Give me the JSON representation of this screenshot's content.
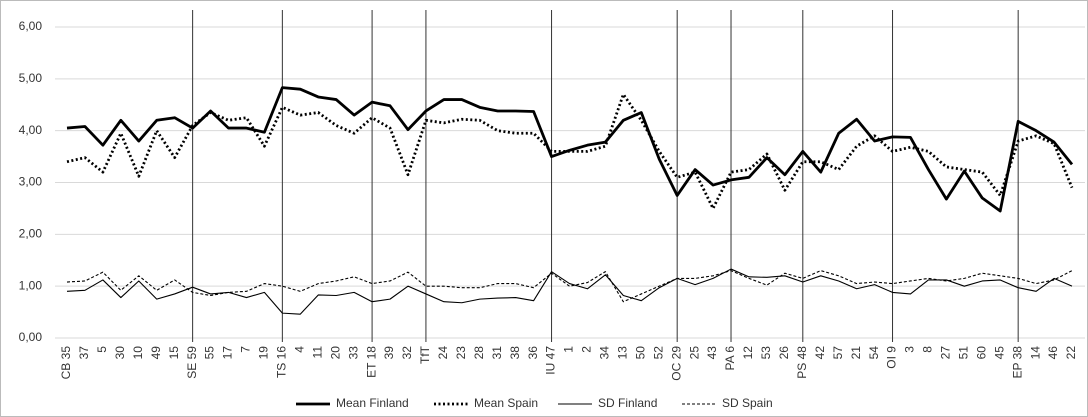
{
  "chart_data": {
    "type": "line",
    "categories": [
      "CB 35",
      "37",
      "5",
      "30",
      "10",
      "49",
      "15",
      "SE 59",
      "55",
      "17",
      "7",
      "19",
      "TS 16",
      "4",
      "11",
      "20",
      "33",
      "ET 18",
      "39",
      "32",
      "TfT",
      "24",
      "23",
      "28",
      "31",
      "38",
      "36",
      "IU 47",
      "1",
      "2",
      "34",
      "13",
      "50",
      "52",
      "OC 29",
      "25",
      "43",
      "PA 6",
      "12",
      "53",
      "26",
      "PS 48",
      "42",
      "57",
      "21",
      "54",
      "OI 9",
      "3",
      "8",
      "27",
      "51",
      "60",
      "45",
      "EP 38",
      "14",
      "46",
      "22"
    ],
    "series": [
      {
        "name": "Mean Finland",
        "color": "#000000",
        "line_style": "thick-solid",
        "values": [
          4.05,
          4.08,
          3.72,
          4.2,
          3.8,
          4.2,
          4.25,
          4.05,
          4.38,
          4.05,
          4.05,
          3.97,
          4.83,
          4.8,
          4.65,
          4.6,
          4.3,
          4.55,
          4.48,
          4.02,
          4.38,
          4.6,
          4.6,
          4.45,
          4.38,
          4.38,
          4.37,
          3.5,
          3.62,
          3.72,
          3.78,
          4.2,
          4.35,
          3.45,
          2.75,
          3.25,
          2.95,
          3.05,
          3.1,
          3.48,
          3.15,
          3.6,
          3.2,
          3.95,
          4.22,
          3.8,
          3.88,
          3.87,
          3.25,
          2.68,
          3.22,
          2.7,
          2.45,
          4.18,
          4.0,
          3.78,
          3.35
        ]
      },
      {
        "name": "Mean Spain",
        "color": "#000000",
        "line_style": "thick-dotted",
        "values": [
          3.4,
          3.48,
          3.2,
          3.95,
          3.12,
          4.0,
          3.48,
          4.1,
          4.35,
          4.2,
          4.25,
          3.7,
          4.45,
          4.3,
          4.35,
          4.1,
          3.95,
          4.25,
          4.05,
          3.15,
          4.2,
          4.15,
          4.22,
          4.2,
          4.0,
          3.95,
          3.95,
          3.6,
          3.6,
          3.6,
          3.7,
          4.7,
          4.2,
          3.6,
          3.1,
          3.2,
          2.5,
          3.2,
          3.25,
          3.55,
          2.85,
          3.4,
          3.4,
          3.25,
          3.7,
          3.9,
          3.6,
          3.68,
          3.6,
          3.3,
          3.25,
          3.2,
          2.75,
          3.8,
          3.9,
          3.75,
          2.9
        ]
      },
      {
        "name": "SD Finland",
        "color": "#000000",
        "line_style": "solid",
        "values": [
          0.9,
          0.92,
          1.12,
          0.78,
          1.1,
          0.75,
          0.85,
          0.98,
          0.85,
          0.88,
          0.78,
          0.88,
          0.48,
          0.46,
          0.83,
          0.82,
          0.88,
          0.7,
          0.75,
          1.0,
          0.85,
          0.7,
          0.68,
          0.75,
          0.77,
          0.78,
          0.72,
          1.28,
          1.05,
          0.95,
          1.22,
          0.82,
          0.72,
          0.97,
          1.15,
          1.03,
          1.15,
          1.33,
          1.18,
          1.17,
          1.2,
          1.08,
          1.2,
          1.1,
          0.95,
          1.03,
          0.88,
          0.85,
          1.12,
          1.12,
          1.0,
          1.1,
          1.12,
          0.97,
          0.9,
          1.15,
          1.0
        ]
      },
      {
        "name": "SD Spain",
        "color": "#000000",
        "line_style": "dashed",
        "values": [
          1.08,
          1.1,
          1.27,
          0.92,
          1.2,
          0.92,
          1.12,
          0.88,
          0.82,
          0.88,
          0.9,
          1.05,
          1.0,
          0.9,
          1.05,
          1.1,
          1.18,
          1.05,
          1.1,
          1.27,
          1.0,
          1.0,
          0.97,
          0.97,
          1.05,
          1.05,
          0.97,
          1.25,
          1.0,
          1.07,
          1.28,
          0.7,
          0.85,
          1.0,
          1.15,
          1.15,
          1.2,
          1.3,
          1.15,
          1.02,
          1.25,
          1.15,
          1.3,
          1.2,
          1.05,
          1.08,
          1.05,
          1.1,
          1.15,
          1.1,
          1.15,
          1.25,
          1.2,
          1.15,
          1.05,
          1.12,
          1.3
        ]
      }
    ],
    "ylim": [
      0,
      6
    ],
    "yticks": [
      {
        "value": 0,
        "label": "0,00"
      },
      {
        "value": 1,
        "label": "1,00"
      },
      {
        "value": 2,
        "label": "2,00"
      },
      {
        "value": 3,
        "label": "3,00"
      },
      {
        "value": 4,
        "label": "4,00"
      },
      {
        "value": 5,
        "label": "5,00"
      },
      {
        "value": 6,
        "label": "6,00"
      }
    ],
    "grid": true,
    "legend": "bottom"
  }
}
